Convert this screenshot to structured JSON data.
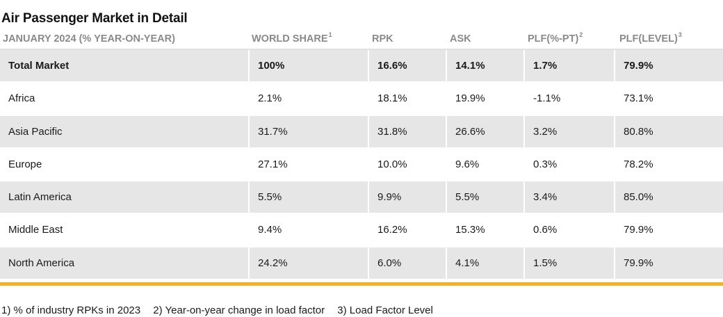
{
  "title": "Air Passenger Market in Detail",
  "header": {
    "col0": "JANUARY 2024 (% YEAR-ON-YEAR)",
    "col1": "WORLD SHARE",
    "col1_sup": "1",
    "col2": "RPK",
    "col3": "ASK",
    "col4": "PLF(%-PT)",
    "col4_sup": "2",
    "col5": "PLF(LEVEL)",
    "col5_sup": "3"
  },
  "rows": [
    {
      "region": "Total Market",
      "world_share": "100%",
      "rpk": "16.6%",
      "ask": "14.1%",
      "plf_pt": "1.7%",
      "plf_level": "79.9%"
    },
    {
      "region": "Africa",
      "world_share": "2.1%",
      "rpk": "18.1%",
      "ask": "19.9%",
      "plf_pt": "-1.1%",
      "plf_level": "73.1%"
    },
    {
      "region": "Asia Pacific",
      "world_share": "31.7%",
      "rpk": "31.8%",
      "ask": "26.6%",
      "plf_pt": "3.2%",
      "plf_level": "80.8%"
    },
    {
      "region": "Europe",
      "world_share": "27.1%",
      "rpk": "10.0%",
      "ask": "9.6%",
      "plf_pt": "0.3%",
      "plf_level": "78.2%"
    },
    {
      "region": "Latin America",
      "world_share": "5.5%",
      "rpk": "9.9%",
      "ask": "5.5%",
      "plf_pt": "3.4%",
      "plf_level": "85.0%"
    },
    {
      "region": "Middle East",
      "world_share": "9.4%",
      "rpk": "16.2%",
      "ask": "15.3%",
      "plf_pt": "0.6%",
      "plf_level": "79.9%"
    },
    {
      "region": "North America",
      "world_share": "24.2%",
      "rpk": "6.0%",
      "ask": "4.1%",
      "plf_pt": "1.5%",
      "plf_level": "79.9%"
    }
  ],
  "footnotes": {
    "f1": "1) % of industry RPKs in 2023",
    "f2": "2) Year-on-year change in load factor",
    "f3": "3) Load Factor Level"
  },
  "colors": {
    "accent": "#f2b12c",
    "row_shade": "#e6e6e6",
    "header_text": "#8a8a8a"
  }
}
